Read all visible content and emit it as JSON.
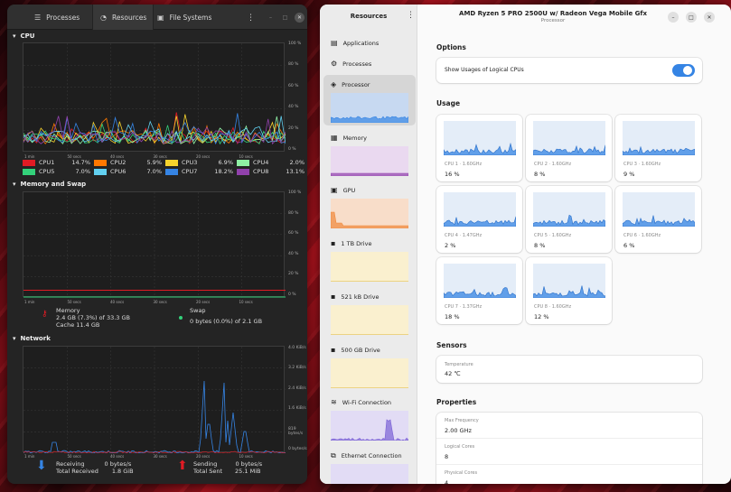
{
  "system_monitor": {
    "tabs": [
      "Processes",
      "Resources",
      "File Systems"
    ],
    "cpu": {
      "title": "CPU",
      "y_ticks": [
        "100 %",
        "80 %",
        "60 %",
        "40 %",
        "20 %",
        "0 %"
      ],
      "x_ticks": [
        "1 min",
        "50 secs",
        "40 secs",
        "30 secs",
        "20 secs",
        "10 secs"
      ],
      "legend": [
        {
          "name": "CPU1",
          "value": "14.7%",
          "color": "#e01b24"
        },
        {
          "name": "CPU2",
          "value": "5.9%",
          "color": "#ff7800"
        },
        {
          "name": "CPU3",
          "value": "6.9%",
          "color": "#f6d32d"
        },
        {
          "name": "CPU4",
          "value": "2.0%",
          "color": "#8ff0a4"
        },
        {
          "name": "CPU5",
          "value": "7.0%",
          "color": "#33d17a"
        },
        {
          "name": "CPU6",
          "value": "7.0%",
          "color": "#62d0f0"
        },
        {
          "name": "CPU7",
          "value": "18.2%",
          "color": "#3584e4"
        },
        {
          "name": "CPU8",
          "value": "13.1%",
          "color": "#9141ac"
        }
      ]
    },
    "memory": {
      "title": "Memory and Swap",
      "y_ticks": [
        "100 %",
        "80 %",
        "60 %",
        "40 %",
        "20 %",
        "0 %"
      ],
      "x_ticks": [
        "1 min",
        "50 secs",
        "40 secs",
        "30 secs",
        "20 secs",
        "10 secs"
      ],
      "mem_label": "Memory",
      "mem_line1": "2.4 GB (7.3%) of 33.3 GB",
      "mem_line2": "Cache 11.4 GB",
      "swap_label": "Swap",
      "swap_line": "0 bytes (0.0%) of 2.1 GB"
    },
    "network": {
      "title": "Network",
      "y_ticks": [
        "4.0 KiB/s",
        "3.2 KiB/s",
        "2.4 KiB/s",
        "1.6 KiB/s",
        "819 bytes/s",
        "0 bytes/s"
      ],
      "x_ticks": [
        "1 min",
        "50 secs",
        "40 secs",
        "30 secs",
        "20 secs",
        "10 secs"
      ],
      "recv_label": "Receiving",
      "recv_rate": "0 bytes/s",
      "recv_total_label": "Total Received",
      "recv_total": "1.8 GiB",
      "send_label": "Sending",
      "send_rate": "0 bytes/s",
      "send_total_label": "Total Sent",
      "send_total": "25.1 MiB"
    }
  },
  "resources": {
    "app_title": "Resources",
    "window_title": "AMD Ryzen 5 PRO 2500U w/ Radeon Vega Mobile Gfx",
    "window_subtitle": "Processor",
    "sidebar": [
      {
        "label": "Applications",
        "icon": "applications-icon"
      },
      {
        "label": "Processes",
        "icon": "processes-icon"
      },
      {
        "label": "Processor",
        "icon": "processor-icon"
      },
      {
        "label": "Memory",
        "icon": "memory-icon"
      },
      {
        "label": "GPU",
        "icon": "gpu-icon"
      },
      {
        "label": "1 TB Drive",
        "icon": "drive-icon"
      },
      {
        "label": "521 kB Drive",
        "icon": "drive-icon"
      },
      {
        "label": "500 GB Drive",
        "icon": "drive-icon"
      },
      {
        "label": "Wi-Fi Connection",
        "icon": "wifi-icon"
      },
      {
        "label": "Ethernet Connection",
        "icon": "ethernet-icon"
      }
    ],
    "options": {
      "title": "Options",
      "logical_label": "Show Usages of Logical CPUs",
      "logical_on": true
    },
    "usage": {
      "title": "Usage",
      "cpus": [
        {
          "name": "CPU 1 · 1.60GHz",
          "value": "16 %"
        },
        {
          "name": "CPU 2 · 1.60GHz",
          "value": "8 %"
        },
        {
          "name": "CPU 3 · 1.60GHz",
          "value": "9 %"
        },
        {
          "name": "CPU 4 · 1.47GHz",
          "value": "2 %"
        },
        {
          "name": "CPU 5 · 1.60GHz",
          "value": "8 %"
        },
        {
          "name": "CPU 6 · 1.60GHz",
          "value": "6 %"
        },
        {
          "name": "CPU 7 · 1.37GHz",
          "value": "18 %"
        },
        {
          "name": "CPU 8 · 1.60GHz",
          "value": "12 %"
        }
      ]
    },
    "sensors": {
      "title": "Sensors",
      "temp_label": "Temperature",
      "temp_value": "42 ℃"
    },
    "properties": {
      "title": "Properties",
      "max_freq_label": "Max Frequency",
      "max_freq": "2.00 GHz",
      "logical_cores_label": "Logical Cores",
      "logical_cores": "8",
      "physical_cores_label": "Physical Cores",
      "physical_cores": "4"
    }
  },
  "colors": {
    "accent": "#3584e4",
    "graph_fill": "#c7d9f1"
  }
}
